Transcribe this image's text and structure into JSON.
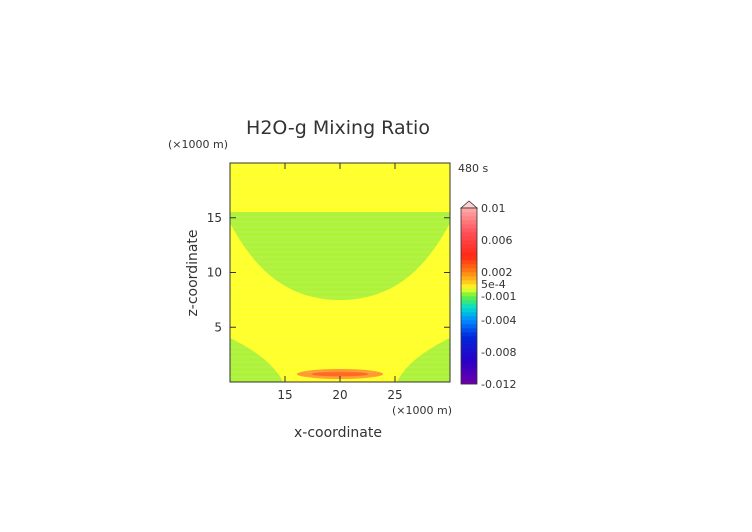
{
  "chart_data": {
    "type": "heatmap",
    "title": "H2O-g Mixing Ratio",
    "time_label": "480 s",
    "xlabel": "x-coordinate",
    "ylabel": "z-coordinate",
    "x_unit": "(×1000 m)",
    "y_unit": "(×1000 m)",
    "xlim": [
      10,
      30
    ],
    "ylim": [
      0,
      20
    ],
    "x_ticks": [
      15,
      20,
      25
    ],
    "y_ticks": [
      5,
      10,
      15
    ],
    "colorbar": {
      "labels": [
        "0.01",
        "0.006",
        "0.002",
        "5e-4",
        "-0.001",
        "-0.004",
        "-0.008",
        "-0.012"
      ],
      "values": [
        0.01,
        0.006,
        0.002,
        0.0005,
        -0.001,
        -0.004,
        -0.008,
        -0.012
      ],
      "range": [
        -0.012,
        0.01
      ],
      "over_color": "#ffd0d0"
    },
    "regions": [
      {
        "name": "background",
        "value": 0.0,
        "color": "#ffff2a"
      },
      {
        "name": "upper-trough",
        "value": -0.001,
        "color": "#aef23a",
        "z_range": [
          7.5,
          15
        ]
      },
      {
        "name": "lower-left",
        "value": -0.001,
        "color": "#aef23a"
      },
      {
        "name": "lower-right",
        "value": -0.001,
        "color": "#aef23a"
      },
      {
        "name": "surface-source",
        "value": 0.002,
        "color": "#ff9a30",
        "center": [
          20,
          0.7
        ]
      }
    ]
  }
}
